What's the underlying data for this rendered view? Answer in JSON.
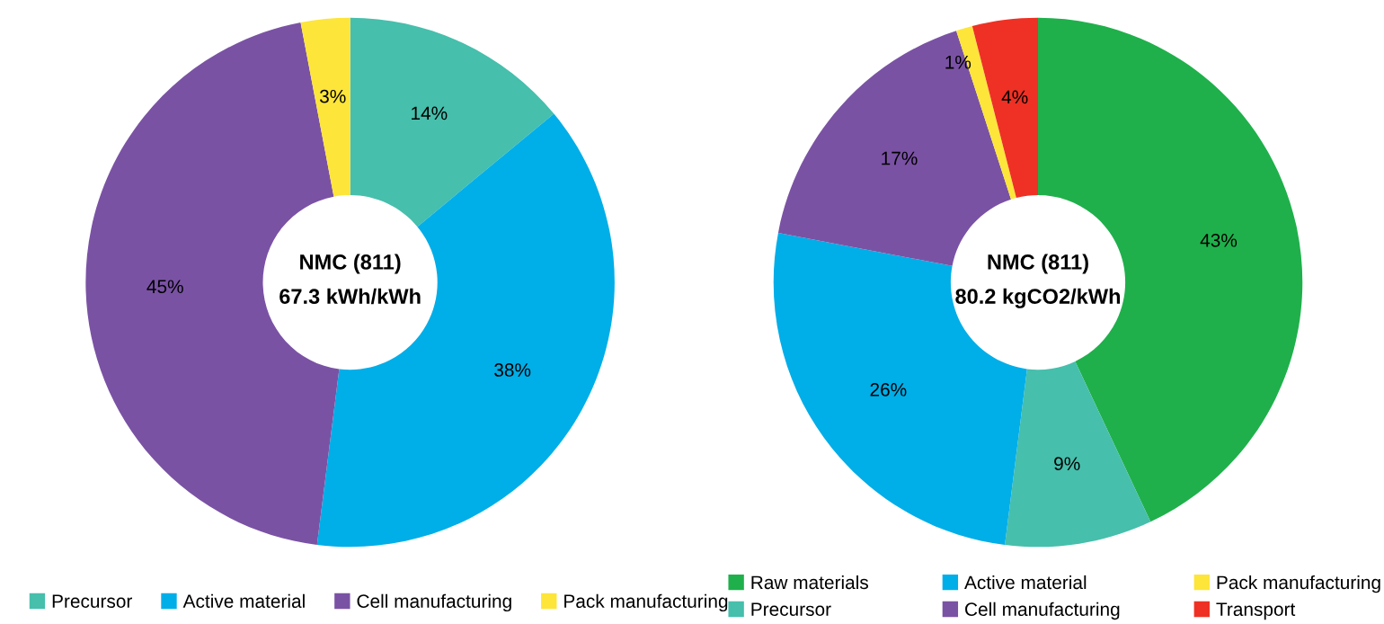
{
  "chart_data": [
    {
      "type": "donut",
      "title": "NMC (811)",
      "subtitle": "67.3 kWh/kWh",
      "categories": [
        "Precursor",
        "Active material",
        "Cell manufacturing",
        "Pack manufacturing"
      ],
      "values": [
        14,
        38,
        45,
        3
      ],
      "colors": [
        "#46bfac",
        "#00aee8",
        "#7a52a4",
        "#fde53a"
      ],
      "value_labels": [
        "14%",
        "38%",
        "45%",
        "3%"
      ],
      "legend": "bottom"
    },
    {
      "type": "donut",
      "title": "NMC (811)",
      "subtitle": "80.2 kgCO2/kWh",
      "categories": [
        "Raw materials",
        "Precursor",
        "Active material",
        "Cell manufacturing",
        "Pack manufacturing",
        "Transport"
      ],
      "values": [
        43,
        9,
        26,
        17,
        1,
        4
      ],
      "colors": [
        "#1fb04b",
        "#46bfac",
        "#00aee8",
        "#7a52a4",
        "#fde53a",
        "#ee3124"
      ],
      "value_labels": [
        "43%",
        "9%",
        "26%",
        "17%",
        "1%",
        "4%"
      ],
      "legend": "bottom"
    }
  ]
}
